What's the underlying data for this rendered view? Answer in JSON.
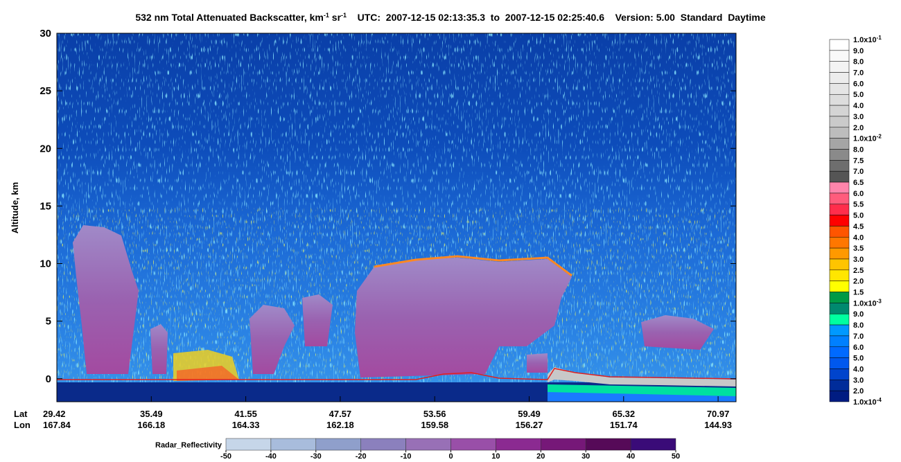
{
  "chart_data": {
    "type": "curtain",
    "title": [
      "532 nm Total Attenuated Backscatter, km",
      "-1",
      " sr",
      "-1",
      "    UTC:  2007-12-15 02:13:35.3  to  2007-12-15 02:25:40.6    Version: 5.00  Standard  Daytime"
    ],
    "y_label": "Altitude, km",
    "ylim": [
      -2,
      30
    ],
    "yticks": [
      0,
      5,
      10,
      15,
      20,
      25,
      30
    ],
    "x_rows": [
      {
        "name": "Lat",
        "labels": [
          "29.42",
          "35.49",
          "41.55",
          "47.57",
          "53.56",
          "59.49",
          "65.32",
          "70.97"
        ]
      },
      {
        "name": "Lon",
        "labels": [
          "167.84",
          "166.18",
          "164.33",
          "162.18",
          "159.58",
          "156.27",
          "151.74",
          "144.93"
        ]
      }
    ],
    "colorbar": {
      "labels": [
        {
          "text": "1.0x10",
          "sup": "-1"
        },
        "9.0",
        "8.0",
        "7.0",
        "6.0",
        "5.0",
        "4.0",
        "3.0",
        "2.0",
        {
          "text": "1.0x10",
          "sup": "-2"
        },
        "8.0",
        "7.5",
        "7.0",
        "6.5",
        "6.0",
        "5.5",
        "5.0",
        "4.5",
        "4.0",
        "3.5",
        "3.0",
        "2.5",
        "2.0",
        "1.5",
        {
          "text": "1.0x10",
          "sup": "-3"
        },
        "9.0",
        "8.0",
        "7.0",
        "6.0",
        "5.0",
        "4.0",
        "3.0",
        "2.0",
        {
          "text": "1.0x10",
          "sup": "-4"
        }
      ],
      "colors": [
        "#ffffff",
        "#f9f9f9",
        "#f3f3f3",
        "#ececec",
        "#e5e5e5",
        "#dddddd",
        "#d4d4d4",
        "#cacaca",
        "#bdbdbd",
        "#a5a5a5",
        "#8a8a8a",
        "#6e6e6e",
        "#555555",
        "#ff85ab",
        "#ff5c7c",
        "#ff2d4b",
        "#ff0000",
        "#ff5500",
        "#ff7700",
        "#ff9900",
        "#ffc400",
        "#ffe600",
        "#ffff00",
        "#009a46",
        "#00896f",
        "#00ffa0",
        "#0099ff",
        "#0080ff",
        "#006aff",
        "#0058ee",
        "#0044cc",
        "#002c9a",
        "#001c82"
      ]
    },
    "radar_colorbar": {
      "title": "Radar_Reflectivity",
      "ticks": [
        -50,
        -40,
        -30,
        -20,
        -10,
        0,
        10,
        20,
        30,
        40,
        50
      ],
      "colors": [
        "#c6d6e9",
        "#a8bcdc",
        "#8f9fcb",
        "#8b80bd",
        "#9870b6",
        "#994fa8",
        "#8b2a91",
        "#761878",
        "#560a58",
        "#3a0b78"
      ]
    }
  }
}
